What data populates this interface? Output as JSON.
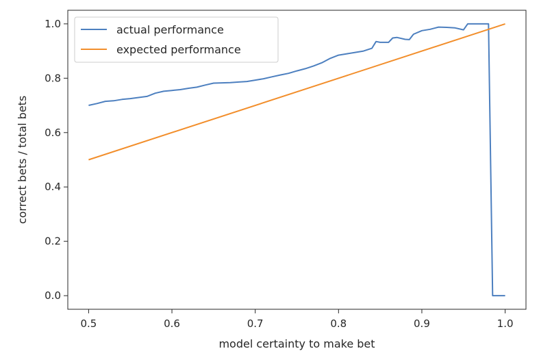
{
  "chart_data": {
    "type": "line",
    "title": "",
    "xlabel": "model certainty to make bet",
    "ylabel": "correct bets / total bets",
    "xlim": [
      0.475,
      1.025
    ],
    "ylim": [
      -0.05,
      1.05
    ],
    "xticks": [
      "0.5",
      "0.6",
      "0.7",
      "0.8",
      "0.9",
      "1.0"
    ],
    "yticks": [
      "0.0",
      "0.2",
      "0.4",
      "0.6",
      "0.8",
      "1.0"
    ],
    "grid": false,
    "legend_position": "top-left",
    "series": [
      {
        "name": "actual performance",
        "color": "#4c7fbf",
        "points": [
          [
            0.5,
            0.7
          ],
          [
            0.51,
            0.707
          ],
          [
            0.52,
            0.715
          ],
          [
            0.53,
            0.717
          ],
          [
            0.54,
            0.722
          ],
          [
            0.55,
            0.725
          ],
          [
            0.56,
            0.729
          ],
          [
            0.57,
            0.733
          ],
          [
            0.58,
            0.745
          ],
          [
            0.59,
            0.752
          ],
          [
            0.6,
            0.755
          ],
          [
            0.61,
            0.758
          ],
          [
            0.62,
            0.763
          ],
          [
            0.63,
            0.767
          ],
          [
            0.64,
            0.775
          ],
          [
            0.65,
            0.782
          ],
          [
            0.66,
            0.783
          ],
          [
            0.67,
            0.784
          ],
          [
            0.68,
            0.786
          ],
          [
            0.69,
            0.788
          ],
          [
            0.7,
            0.793
          ],
          [
            0.71,
            0.798
          ],
          [
            0.72,
            0.805
          ],
          [
            0.73,
            0.812
          ],
          [
            0.74,
            0.818
          ],
          [
            0.75,
            0.827
          ],
          [
            0.76,
            0.835
          ],
          [
            0.77,
            0.845
          ],
          [
            0.78,
            0.857
          ],
          [
            0.79,
            0.873
          ],
          [
            0.8,
            0.885
          ],
          [
            0.81,
            0.89
          ],
          [
            0.82,
            0.895
          ],
          [
            0.83,
            0.9
          ],
          [
            0.84,
            0.91
          ],
          [
            0.845,
            0.935
          ],
          [
            0.85,
            0.932
          ],
          [
            0.86,
            0.932
          ],
          [
            0.865,
            0.948
          ],
          [
            0.87,
            0.95
          ],
          [
            0.88,
            0.943
          ],
          [
            0.885,
            0.942
          ],
          [
            0.89,
            0.962
          ],
          [
            0.9,
            0.975
          ],
          [
            0.91,
            0.98
          ],
          [
            0.92,
            0.988
          ],
          [
            0.93,
            0.987
          ],
          [
            0.94,
            0.985
          ],
          [
            0.95,
            0.978
          ],
          [
            0.955,
            1.0
          ],
          [
            0.96,
            1.0
          ],
          [
            0.97,
            1.0
          ],
          [
            0.98,
            1.0
          ],
          [
            0.985,
            0.0
          ],
          [
            1.0,
            0.0
          ]
        ]
      },
      {
        "name": "expected performance",
        "color": "#f28e2b",
        "points": [
          [
            0.5,
            0.5
          ],
          [
            1.0,
            1.0
          ]
        ]
      }
    ]
  }
}
